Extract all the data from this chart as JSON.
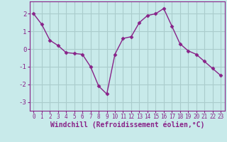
{
  "x": [
    0,
    1,
    2,
    3,
    4,
    5,
    6,
    7,
    8,
    9,
    10,
    11,
    12,
    13,
    14,
    15,
    16,
    17,
    18,
    19,
    20,
    21,
    22,
    23
  ],
  "y": [
    2.0,
    1.4,
    0.5,
    0.2,
    -0.2,
    -0.25,
    -0.3,
    -1.0,
    -2.1,
    -2.55,
    -0.3,
    0.6,
    0.7,
    1.5,
    1.9,
    2.0,
    2.3,
    1.3,
    0.3,
    -0.1,
    -0.3,
    -0.7,
    -1.1,
    -1.5
  ],
  "line_color": "#882288",
  "marker": "D",
  "marker_size": 2.5,
  "bg_color": "#c8eaea",
  "grid_color": "#aacccc",
  "xlabel": "Windchill (Refroidissement éolien,°C)",
  "xlabel_fontsize": 7,
  "ylim": [
    -3.5,
    2.7
  ],
  "xlim": [
    -0.5,
    23.5
  ],
  "yticks": [
    -3,
    -2,
    -1,
    0,
    1,
    2
  ],
  "xtick_fontsize": 5.5,
  "ytick_fontsize": 6.5,
  "tick_color": "#882288",
  "spine_color": "#882288"
}
